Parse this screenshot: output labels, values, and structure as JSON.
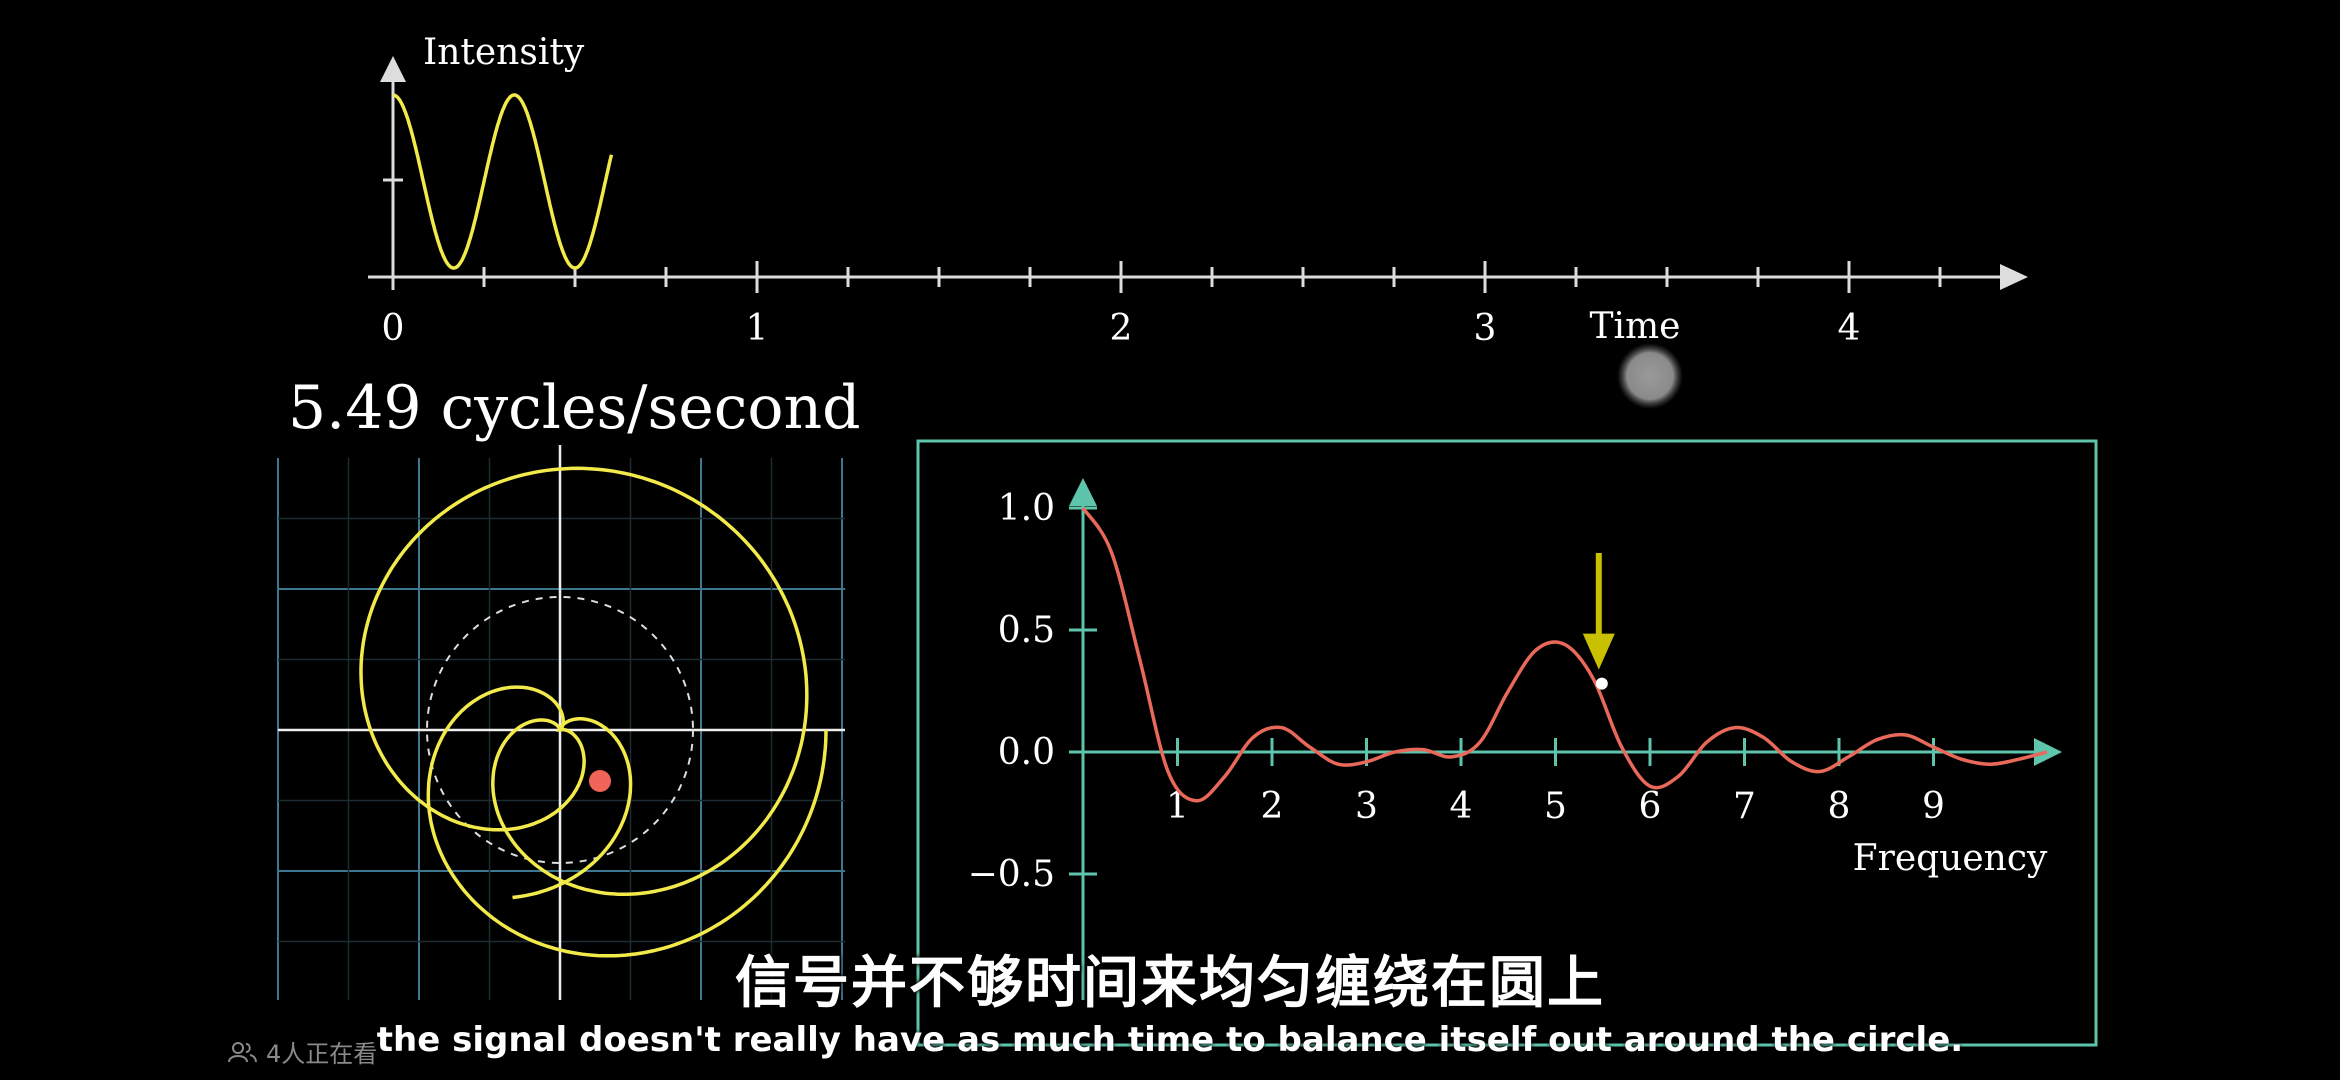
{
  "top_graph": {
    "ylabel": "Intensity",
    "xlabel": "Time",
    "x_ticks": [
      "0",
      "1",
      "2",
      "3",
      "4"
    ],
    "signal_cycles_per_unit": 3,
    "signal_duration": 0.6
  },
  "winding": {
    "frequency_readout": "5.49 cycles/second",
    "winding_frequency": 5.49
  },
  "chart_data": {
    "type": "line",
    "xlabel": "Frequency",
    "x_ticks": [
      "1",
      "2",
      "3",
      "4",
      "5",
      "6",
      "7",
      "8",
      "9"
    ],
    "y_ticks": [
      "1.0",
      "0.5",
      "0.0",
      "−0.5"
    ],
    "ylim": [
      -0.6,
      1.1
    ],
    "xlim": [
      0,
      10.2
    ],
    "series": [
      {
        "color": "#e8685a",
        "x": [
          0.0,
          0.3,
          0.6,
          0.9,
          1.2,
          1.5,
          1.8,
          2.1,
          2.4,
          2.7,
          3.0,
          3.3,
          3.6,
          3.9,
          4.2,
          4.5,
          4.8,
          5.1,
          5.4,
          5.7,
          6.0,
          6.3,
          6.6,
          6.9,
          7.2,
          7.5,
          7.8,
          8.1,
          8.4,
          8.7,
          9.0,
          9.3,
          9.6,
          9.9,
          10.2
        ],
        "y": [
          1.0,
          0.82,
          0.38,
          -0.08,
          -0.2,
          -0.1,
          0.06,
          0.1,
          0.02,
          -0.05,
          -0.04,
          0.0,
          0.01,
          -0.02,
          0.04,
          0.25,
          0.42,
          0.44,
          0.3,
          0.02,
          -0.14,
          -0.1,
          0.04,
          0.1,
          0.06,
          -0.04,
          -0.08,
          -0.02,
          0.05,
          0.07,
          0.02,
          -0.03,
          -0.05,
          -0.03,
          0.0
        ]
      }
    ],
    "marker_x": 5.49,
    "marker_y": 0.28,
    "arrow_color": "#c8c000"
  },
  "subtitles": {
    "chinese": "信号并不够时间来均匀缠绕在圆上",
    "english": "the signal doesn't really have as much time to balance itself out around the circle."
  },
  "viewers": {
    "text": "4人正在看",
    "icon": "people-icon"
  }
}
